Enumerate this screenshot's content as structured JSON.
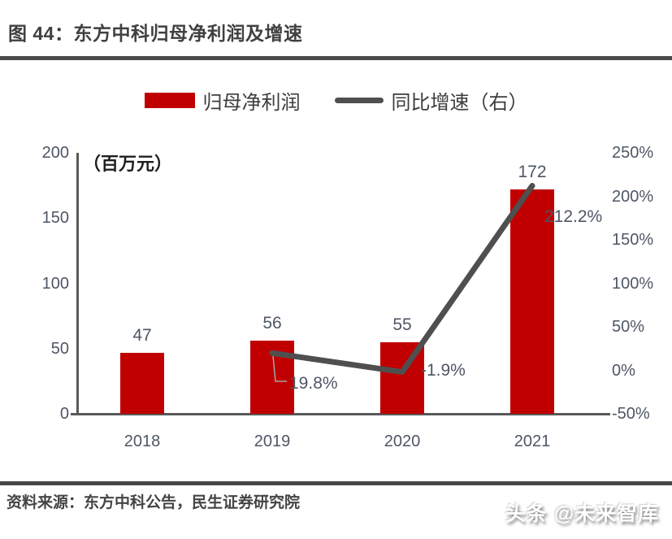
{
  "header": {
    "title": "图 44：东方中科归母净利润及增速"
  },
  "legend": {
    "bar_label": "归母净利润",
    "line_label": "同比增速（右）"
  },
  "chart_data": {
    "type": "bar",
    "subtype": "bar+line dual axis",
    "title": "东方中科归母净利润及增速",
    "categories": [
      "2018",
      "2019",
      "2020",
      "2021"
    ],
    "unit_label": "（百万元）",
    "series": [
      {
        "name": "归母净利润",
        "type": "bar",
        "axis": "left",
        "values": [
          47,
          56,
          55,
          172
        ],
        "labels": [
          "47",
          "56",
          "55",
          "172"
        ],
        "color": "#c00000"
      },
      {
        "name": "同比增速（右）",
        "type": "line",
        "axis": "right",
        "values": [
          null,
          19.8,
          -1.9,
          212.2
        ],
        "labels": [
          null,
          "19.8%",
          "-1.9%",
          "212.2%"
        ],
        "color": "#4f4f4f"
      }
    ],
    "left_axis": {
      "ticks": [
        "200",
        "150",
        "100",
        "50",
        "0"
      ],
      "min": 0,
      "max": 200
    },
    "right_axis": {
      "ticks": [
        "250%",
        "200%",
        "150%",
        "100%",
        "50%",
        "0%",
        "-50%"
      ],
      "min": -50,
      "max": 250
    },
    "legend_position": "top",
    "grid": false
  },
  "footer": {
    "source": "资料来源：东方中科公告，民生证券研究院",
    "watermark": "头条 @未来智库"
  },
  "colors": {
    "bar": "#c00000",
    "line": "#4f4f4f",
    "axis": "#595959",
    "tick_text": "#4e5665",
    "rule": "#4a4a4a"
  }
}
